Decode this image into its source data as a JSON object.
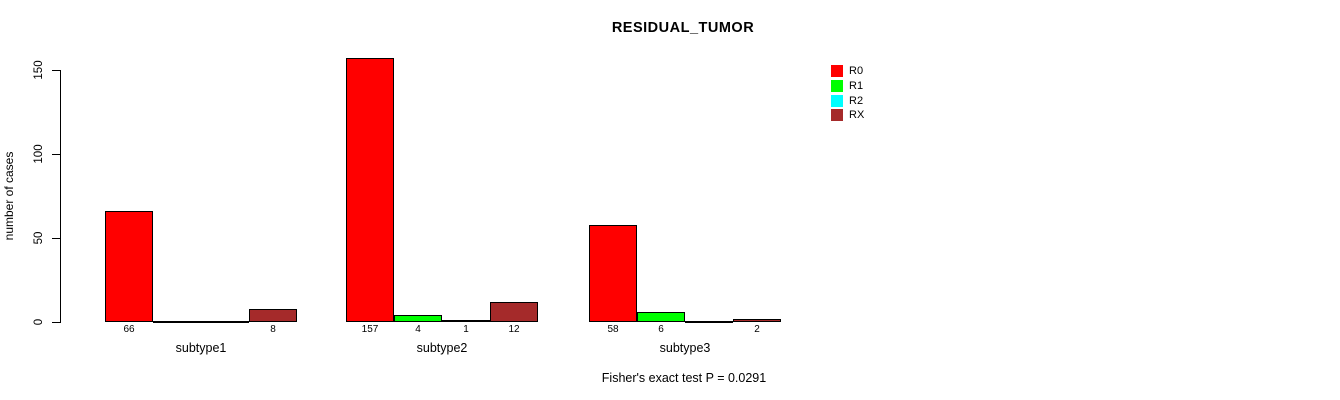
{
  "chart_data": {
    "type": "bar",
    "title": "RESIDUAL_TUMOR",
    "xlabel": "",
    "ylabel": "number of cases",
    "ylim": [
      0,
      150
    ],
    "y_ticks": [
      0,
      50,
      100,
      150
    ],
    "grid": false,
    "legend_position": "right-outside",
    "categories": [
      "subtype1",
      "subtype2",
      "subtype3"
    ],
    "series": [
      {
        "name": "R0",
        "color": "#FF0000",
        "values": [
          66,
          157,
          58
        ]
      },
      {
        "name": "R1",
        "color": "#00FF00",
        "values": [
          0,
          4,
          6
        ]
      },
      {
        "name": "R2",
        "color": "#00FFFF",
        "values": [
          0,
          1,
          0
        ]
      },
      {
        "name": "RX",
        "color": "#A52A2A",
        "values": [
          8,
          12,
          2
        ]
      }
    ],
    "bar_value_labels": {
      "subtype1": [
        "66",
        "",
        "",
        "8"
      ],
      "subtype2": [
        "157",
        "4",
        "1",
        "12"
      ],
      "subtype3": [
        "58",
        "6",
        "",
        "2"
      ]
    },
    "footnote": "Fisher's exact test P = 0.0291"
  }
}
